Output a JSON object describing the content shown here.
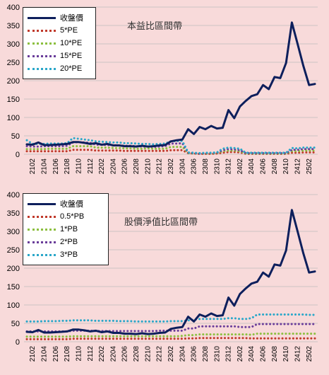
{
  "chart_data": [
    {
      "type": "line",
      "title": "本益比區間帶",
      "x": [
        "2101",
        "2102",
        "2103",
        "2104",
        "2105",
        "2106",
        "2107",
        "2108",
        "2109",
        "2110",
        "2111",
        "2112",
        "2201",
        "2202",
        "2203",
        "2204",
        "2205",
        "2206",
        "2207",
        "2208",
        "2209",
        "2210",
        "2211",
        "2212",
        "2301",
        "2302",
        "2303",
        "2304",
        "2305",
        "2306",
        "2307",
        "2308",
        "2309",
        "2310",
        "2311",
        "2312",
        "2401",
        "2402",
        "2403",
        "2404",
        "2405",
        "2406",
        "2407",
        "2408",
        "2409",
        "2410",
        "2411",
        "2412",
        "2501",
        "2502",
        "2503"
      ],
      "xticks": [
        "2102",
        "2104",
        "2106",
        "2108",
        "2110",
        "2112",
        "2202",
        "2204",
        "2206",
        "2208",
        "2210",
        "2212",
        "2302",
        "2304",
        "2306",
        "2308",
        "2310",
        "2312",
        "2402",
        "2404",
        "2406",
        "2408",
        "2410",
        "2412",
        "2502"
      ],
      "ylim": [
        0,
        400
      ],
      "yticks": [
        0,
        50,
        100,
        150,
        200,
        250,
        300,
        350,
        400
      ],
      "grid": true,
      "legend": "top-left",
      "series": [
        {
          "name": "收盤價",
          "color": "#0d1f5c",
          "style": "solid",
          "values": [
            27,
            26,
            32,
            25,
            25,
            26,
            27,
            28,
            33,
            33,
            31,
            28,
            30,
            26,
            28,
            24,
            24,
            22,
            22,
            21,
            23,
            21,
            22,
            24,
            25,
            35,
            38,
            40,
            68,
            55,
            74,
            68,
            77,
            70,
            72,
            120,
            98,
            130,
            145,
            158,
            163,
            188,
            177,
            210,
            207,
            248,
            358,
            300,
            240,
            188,
            191
          ]
        },
        {
          "name": "5*PE",
          "color": "#c0392b",
          "style": "dotted",
          "values": [
            8,
            8,
            8,
            8,
            8,
            8,
            8,
            8,
            12,
            12,
            12,
            12,
            10,
            10,
            10,
            10,
            10,
            9,
            9,
            9,
            9,
            9,
            9,
            9,
            9,
            11,
            11,
            11,
            3,
            2,
            1,
            1,
            1,
            2,
            4,
            6,
            6,
            5,
            1,
            1,
            1,
            1,
            1,
            1,
            1,
            1,
            4,
            4,
            5,
            5,
            5
          ]
        },
        {
          "name": "10*PE",
          "color": "#8cbf3f",
          "style": "dotted",
          "values": [
            14,
            14,
            14,
            14,
            15,
            15,
            15,
            15,
            22,
            22,
            22,
            22,
            18,
            18,
            18,
            17,
            17,
            16,
            16,
            15,
            15,
            16,
            15,
            15,
            15,
            20,
            20,
            20,
            3,
            2,
            2,
            2,
            2,
            3,
            8,
            10,
            10,
            8,
            2,
            2,
            2,
            2,
            2,
            2,
            2,
            2,
            8,
            8,
            10,
            10,
            10
          ]
        },
        {
          "name": "15*PE",
          "color": "#6a3d9a",
          "style": "dotted",
          "values": [
            22,
            21,
            21,
            22,
            22,
            22,
            22,
            23,
            32,
            33,
            32,
            31,
            26,
            26,
            25,
            25,
            24,
            23,
            23,
            22,
            21,
            21,
            20,
            21,
            22,
            29,
            29,
            30,
            4,
            3,
            2,
            3,
            3,
            4,
            11,
            14,
            13,
            11,
            3,
            3,
            3,
            3,
            3,
            3,
            3,
            3,
            12,
            12,
            14,
            14,
            14
          ]
        },
        {
          "name": "20*PE",
          "color": "#2aa7c9",
          "style": "dotted",
          "values": [
            38,
            28,
            28,
            28,
            29,
            29,
            29,
            30,
            44,
            42,
            40,
            38,
            35,
            34,
            33,
            32,
            32,
            30,
            30,
            29,
            28,
            28,
            27,
            28,
            29,
            35,
            36,
            36,
            5,
            4,
            3,
            4,
            4,
            5,
            15,
            18,
            17,
            15,
            4,
            4,
            4,
            4,
            4,
            4,
            4,
            4,
            17,
            16,
            18,
            18,
            18
          ]
        }
      ]
    },
    {
      "type": "line",
      "title": "股價淨值比區間帶",
      "x": [
        "2101",
        "2102",
        "2103",
        "2104",
        "2105",
        "2106",
        "2107",
        "2108",
        "2109",
        "2110",
        "2111",
        "2112",
        "2201",
        "2202",
        "2203",
        "2204",
        "2205",
        "2206",
        "2207",
        "2208",
        "2209",
        "2210",
        "2211",
        "2212",
        "2301",
        "2302",
        "2303",
        "2304",
        "2305",
        "2306",
        "2307",
        "2308",
        "2309",
        "2310",
        "2311",
        "2312",
        "2401",
        "2402",
        "2403",
        "2404",
        "2405",
        "2406",
        "2407",
        "2408",
        "2409",
        "2410",
        "2411",
        "2412",
        "2501",
        "2502",
        "2503"
      ],
      "xticks": [
        "2102",
        "2104",
        "2106",
        "2108",
        "2110",
        "2112",
        "2202",
        "2204",
        "2206",
        "2208",
        "2210",
        "2212",
        "2302",
        "2304",
        "2306",
        "2308",
        "2310",
        "2312",
        "2402",
        "2404",
        "2406",
        "2408",
        "2410",
        "2412",
        "2502"
      ],
      "ylim": [
        0,
        400
      ],
      "yticks": [
        0,
        50,
        100,
        150,
        200,
        250,
        300,
        350,
        400
      ],
      "grid": true,
      "legend": "top-left",
      "series": [
        {
          "name": "收盤價",
          "color": "#0d1f5c",
          "style": "solid",
          "values": [
            27,
            26,
            32,
            25,
            25,
            26,
            27,
            28,
            33,
            33,
            31,
            28,
            30,
            26,
            28,
            24,
            24,
            22,
            22,
            21,
            23,
            21,
            22,
            24,
            25,
            35,
            38,
            40,
            68,
            55,
            74,
            68,
            77,
            70,
            72,
            120,
            98,
            130,
            145,
            158,
            163,
            188,
            177,
            210,
            207,
            248,
            358,
            300,
            240,
            188,
            191
          ]
        },
        {
          "name": "0.5*PB",
          "color": "#c0392b",
          "style": "dotted",
          "values": [
            7,
            7,
            7,
            7,
            7,
            7,
            7,
            7,
            8,
            8,
            8,
            8,
            8,
            8,
            8,
            8,
            8,
            8,
            8,
            8,
            8,
            8,
            8,
            8,
            8,
            8,
            8,
            8,
            9,
            9,
            10,
            10,
            10,
            10,
            10,
            10,
            10,
            10,
            10,
            9,
            9,
            9,
            9,
            9,
            9,
            9,
            9,
            9,
            9,
            9,
            9
          ]
        },
        {
          "name": "1*PB",
          "color": "#8cbf3f",
          "style": "dotted",
          "values": [
            14,
            14,
            14,
            14,
            14,
            14,
            14,
            14,
            15,
            15,
            15,
            15,
            15,
            15,
            15,
            15,
            15,
            15,
            15,
            15,
            15,
            15,
            15,
            15,
            15,
            15,
            15,
            16,
            18,
            18,
            20,
            20,
            20,
            20,
            20,
            20,
            20,
            20,
            20,
            19,
            22,
            22,
            22,
            22,
            22,
            22,
            22,
            22,
            22,
            22,
            22
          ]
        },
        {
          "name": "2*PB",
          "color": "#6a3d9a",
          "style": "dotted",
          "values": [
            28,
            28,
            28,
            28,
            28,
            28,
            28,
            28,
            30,
            30,
            30,
            30,
            29,
            29,
            29,
            29,
            29,
            29,
            29,
            29,
            29,
            29,
            29,
            30,
            30,
            30,
            30,
            30,
            36,
            36,
            42,
            42,
            42,
            42,
            42,
            42,
            42,
            40,
            40,
            40,
            48,
            48,
            48,
            48,
            48,
            48,
            48,
            48,
            48,
            48,
            48
          ]
        },
        {
          "name": "3*PB",
          "color": "#2aa7c9",
          "style": "dotted",
          "values": [
            55,
            55,
            55,
            56,
            56,
            56,
            57,
            57,
            58,
            58,
            58,
            58,
            57,
            57,
            57,
            57,
            56,
            56,
            56,
            55,
            55,
            55,
            55,
            55,
            55,
            56,
            56,
            56,
            58,
            60,
            62,
            62,
            62,
            62,
            62,
            64,
            64,
            62,
            62,
            64,
            74,
            74,
            74,
            74,
            74,
            74,
            74,
            74,
            74,
            73,
            73
          ]
        }
      ]
    }
  ]
}
